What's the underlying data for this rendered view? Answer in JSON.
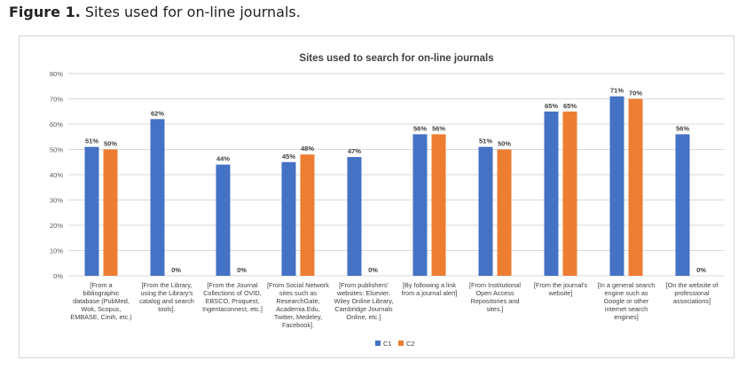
{
  "caption": {
    "number": "Figure 1.",
    "text": "Sites used for on-line journals."
  },
  "chart_data": {
    "type": "bar",
    "title": "Sites used to search for on-line journals",
    "xlabel": "",
    "ylabel": "",
    "ylim": [
      0,
      80
    ],
    "yticks": [
      "0%",
      "10%",
      "20%",
      "30%",
      "40%",
      "50%",
      "60%",
      "70%",
      "80%"
    ],
    "grid": true,
    "legend_position": "bottom",
    "categories": [
      [
        "[From a",
        "bibliographic",
        "database (PubMed,",
        "Wok, Scopus,",
        "EMBASE, Cinih, etc.)"
      ],
      [
        "[From the Library,",
        "using the Library's",
        "catalog and search",
        "tools]."
      ],
      [
        "[From the Journal",
        "Collections of OVID,",
        "EBSCO, Proquest,",
        "Ingentaconnect, etc.]"
      ],
      [
        "[From Social Network",
        "sites such as",
        "ResearchGate,",
        "Academia.Edu,",
        "Twitter, Medeley,",
        "Facebook]."
      ],
      [
        "[From publishers'",
        "websites: Elsevier,",
        "Wiley Online Library,",
        "Cambridge Journals",
        "Online, etc.]"
      ],
      [
        "[By following a link",
        "from a journal alert]"
      ],
      [
        "[From Institutional",
        "Open Access",
        "Repositories and",
        "sites.]"
      ],
      [
        "[From the journal's",
        "website]"
      ],
      [
        "[In a general search",
        "engine such as",
        "Google or other",
        "internet search",
        "engines]"
      ],
      [
        "[On the website of",
        "professional",
        "associations]"
      ]
    ],
    "series": [
      {
        "name": "C1",
        "color": "#4472c4",
        "values": [
          51,
          62,
          44,
          45,
          47,
          56,
          51,
          65,
          71,
          56
        ],
        "labels": [
          "51%",
          "62%",
          "44%",
          "45%",
          "47%",
          "56%",
          "51%",
          "65%",
          "71%",
          "56%"
        ]
      },
      {
        "name": "C2",
        "color": "#ed7d31",
        "values": [
          50,
          0,
          0,
          48,
          0,
          56,
          50,
          65,
          70,
          0
        ],
        "labels": [
          "50%",
          "0%",
          "0%",
          "48%",
          "0%",
          "56%",
          "50%",
          "65%",
          "70%",
          "0%"
        ]
      }
    ]
  }
}
